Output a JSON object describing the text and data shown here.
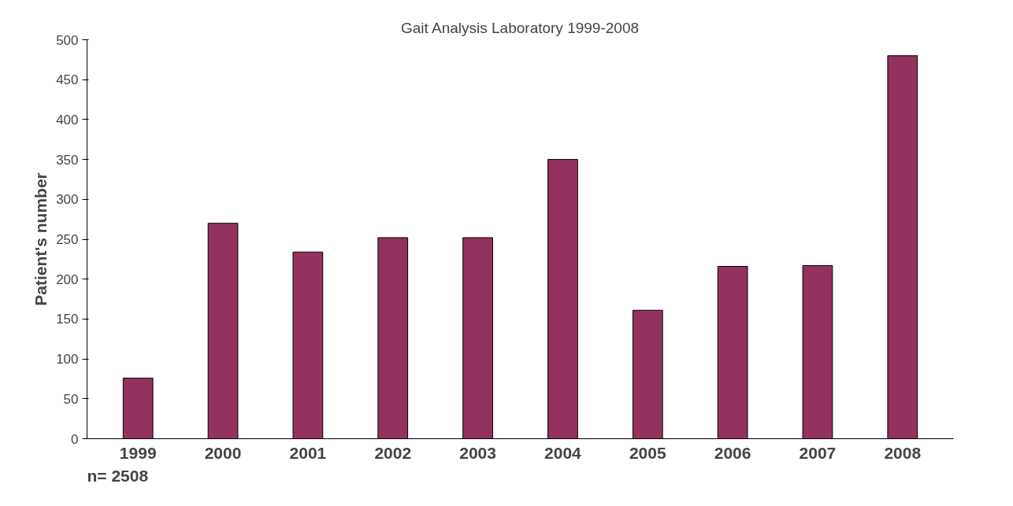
{
  "chart_data": {
    "type": "bar",
    "title": "Gait Analysis Laboratory 1999-2008",
    "ylabel": "Patient's number",
    "categories": [
      "1999",
      "2000",
      "2001",
      "2002",
      "2003",
      "2004",
      "2005",
      "2006",
      "2007",
      "2008"
    ],
    "values": [
      76,
      270,
      234,
      252,
      252,
      350,
      161,
      216,
      217,
      480
    ],
    "color": "#93325e",
    "ylim": [
      0,
      500
    ],
    "yticks": [
      0,
      50,
      100,
      150,
      200,
      250,
      300,
      350,
      400,
      450,
      500
    ],
    "grid": false,
    "annotations": [
      "n= 2508"
    ]
  }
}
